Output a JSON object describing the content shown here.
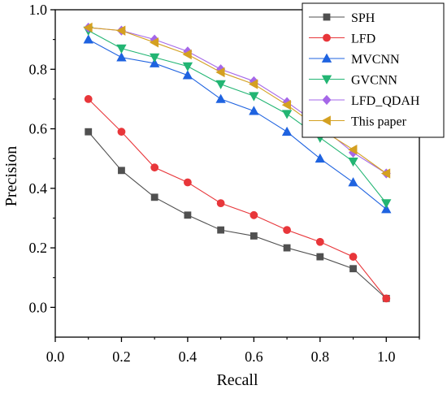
{
  "chart_data": {
    "type": "line",
    "xlabel": "Recall",
    "ylabel": "Precision",
    "xlim": [
      0.0,
      1.1
    ],
    "ylim": [
      -0.1,
      1.0
    ],
    "xticks": [
      "0.0",
      "0.2",
      "0.4",
      "0.6",
      "0.8",
      "1.0"
    ],
    "yticks": [
      "0.0",
      "0.2",
      "0.4",
      "0.6",
      "0.8",
      "1.0"
    ],
    "grid": false,
    "legend_position": "top-right",
    "x": [
      0.1,
      0.2,
      0.3,
      0.4,
      0.5,
      0.6,
      0.7,
      0.8,
      0.9,
      1.0
    ],
    "series": [
      {
        "name": "SPH",
        "color": "#505050",
        "marker": "square",
        "values": [
          0.59,
          0.46,
          0.37,
          0.31,
          0.26,
          0.24,
          0.2,
          0.17,
          0.13,
          0.03
        ]
      },
      {
        "name": "LFD",
        "color": "#e8363a",
        "marker": "circle",
        "values": [
          0.7,
          0.59,
          0.47,
          0.42,
          0.35,
          0.31,
          0.26,
          0.22,
          0.17,
          0.03
        ]
      },
      {
        "name": "MVCNN",
        "color": "#1f63e0",
        "marker": "triangle-up",
        "values": [
          0.9,
          0.84,
          0.82,
          0.78,
          0.7,
          0.66,
          0.59,
          0.5,
          0.42,
          0.33
        ]
      },
      {
        "name": "GVCNN",
        "color": "#22b573",
        "marker": "triangle-down",
        "values": [
          0.93,
          0.87,
          0.84,
          0.81,
          0.75,
          0.71,
          0.65,
          0.57,
          0.49,
          0.35
        ]
      },
      {
        "name": "LFD_QDAH",
        "color": "#a567e8",
        "marker": "diamond",
        "values": [
          0.94,
          0.93,
          0.9,
          0.86,
          0.8,
          0.76,
          0.69,
          0.61,
          0.52,
          0.45
        ]
      },
      {
        "name": "This paper",
        "color": "#d4a021",
        "marker": "triangle-left",
        "values": [
          0.94,
          0.93,
          0.89,
          0.85,
          0.79,
          0.75,
          0.68,
          0.6,
          0.53,
          0.45
        ]
      }
    ]
  }
}
